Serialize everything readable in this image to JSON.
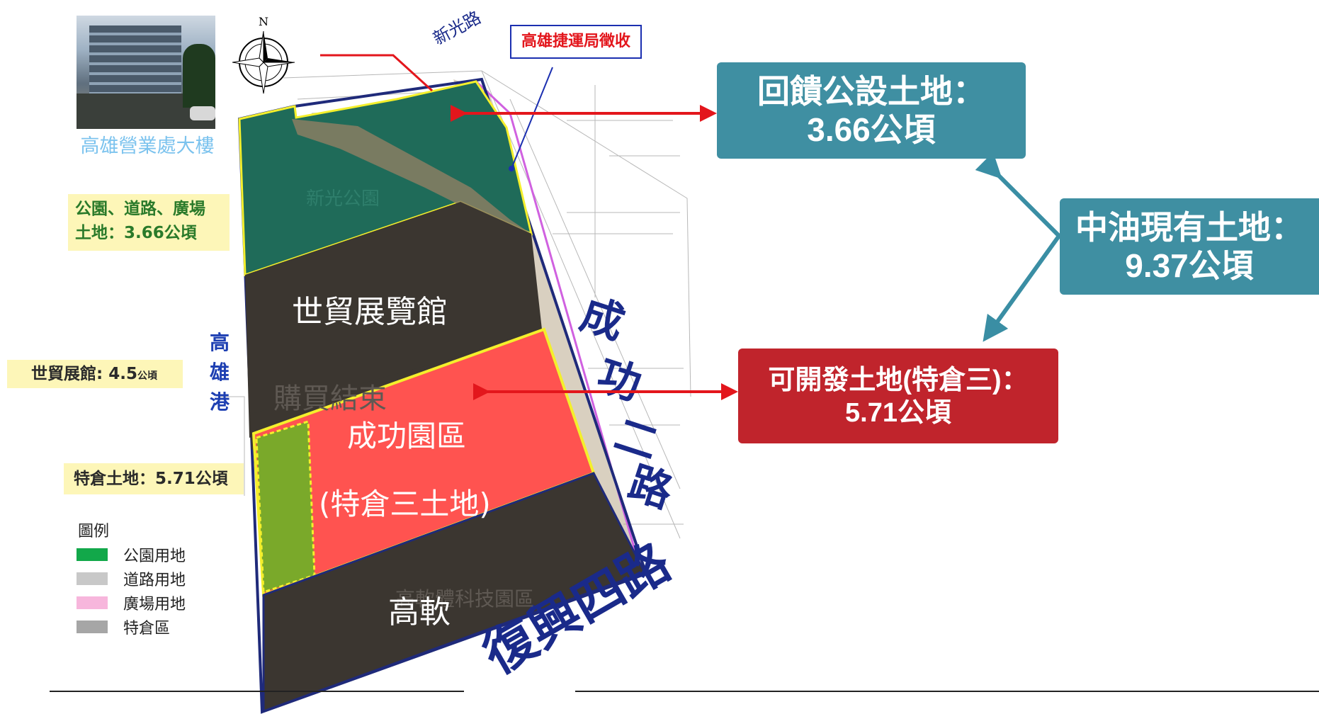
{
  "photo": {
    "caption": "高雄營業處大樓"
  },
  "compass": {
    "north": "N"
  },
  "roads": {
    "xinguang": "新光路",
    "chenggong": [
      "成",
      "功",
      "二",
      "路"
    ],
    "fuxing": "復興四路",
    "harbor": [
      "高",
      "雄",
      "港"
    ]
  },
  "mrt_callout": "高雄捷運局徵收",
  "map_labels": {
    "park": "新光公園",
    "purchase": "購買結束",
    "softpark": "高軟體科技園區"
  },
  "zones": {
    "expo": "世貿展覽館",
    "chenggong_line1": "成功園區",
    "chenggong_line2": "(特倉三土地)",
    "gaoruan": "高軟"
  },
  "side_labels": {
    "park_road_line1": "公園、道路、廣場",
    "park_road_line2": "土地：3.66公頃",
    "expo_area": "世貿展館: 4.5",
    "expo_unit": "公頃",
    "warehouse": "特倉土地：5.71公頃"
  },
  "boxes": {
    "feedback_title": "回饋公設土地：",
    "feedback_value": "3.66公頃",
    "cpc_title": "中油現有土地：",
    "cpc_value": "9.37公頃",
    "dev_title": "可開發土地(特倉三)：",
    "dev_value": "5.71公頃"
  },
  "legend": {
    "title": "圖例",
    "items": [
      {
        "label": "公園用地",
        "color": "#12a84a"
      },
      {
        "label": "道路用地",
        "color": "#c8c8c8"
      },
      {
        "label": "廣場用地",
        "color": "#f7b6dc"
      },
      {
        "label": "特倉區",
        "color": "#a6a6a6"
      }
    ]
  },
  "colors": {
    "park_zone": "#1f6b59",
    "dark_zone": "#3b3630",
    "red_zone": "#ff5350",
    "green_strip": "#7aa92a",
    "teal": "#3f8fa2",
    "red_box": "#c0242c",
    "arrow_red": "#e3161c",
    "arrow_teal": "#3a8ea4"
  }
}
